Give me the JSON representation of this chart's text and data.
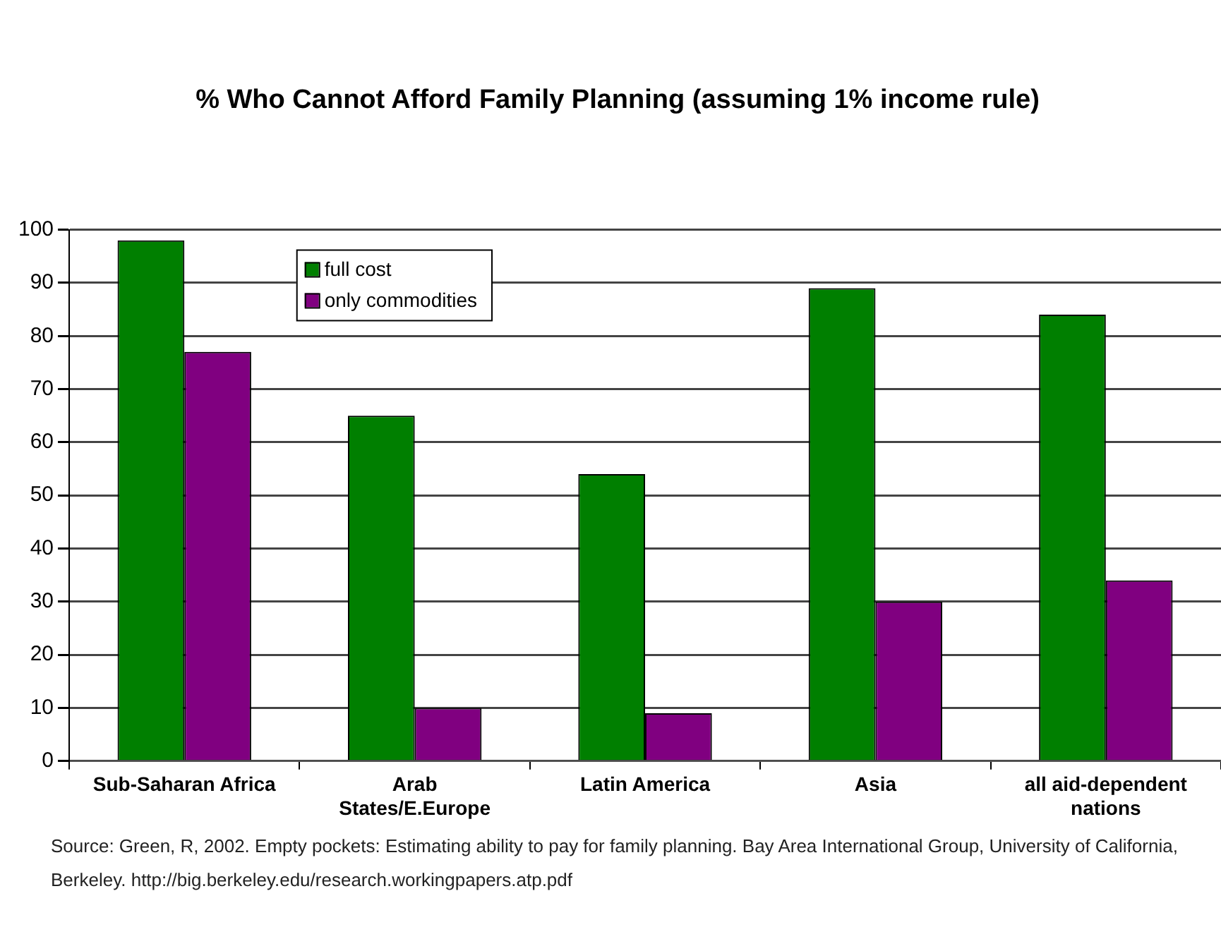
{
  "chart_data": {
    "type": "bar",
    "title": "% Who Cannot Afford Family Planning (assuming 1% income rule)",
    "categories": [
      "Sub-Saharan Africa",
      "Arab States/E.Europe",
      "Latin America",
      "Asia",
      "all aid-dependent nations"
    ],
    "series": [
      {
        "name": "full cost",
        "color": "#007f00",
        "values": [
          98,
          65,
          54,
          89,
          84
        ]
      },
      {
        "name": "only commodities",
        "color": "#800080",
        "values": [
          77,
          10,
          9,
          30,
          34
        ]
      }
    ],
    "ylim": [
      0,
      100
    ],
    "yticks": [
      0,
      10,
      20,
      30,
      40,
      50,
      60,
      70,
      80,
      90,
      100
    ],
    "grid": "y",
    "legend": "top left",
    "annotations": [
      "Source: Green, R, 2002. Empty pockets: Estimating ability to pay for family planning. Bay Area International Group, University of California, Berkeley. http://big.berkeley.edu/research.workingpapers.atp.pdf"
    ]
  }
}
